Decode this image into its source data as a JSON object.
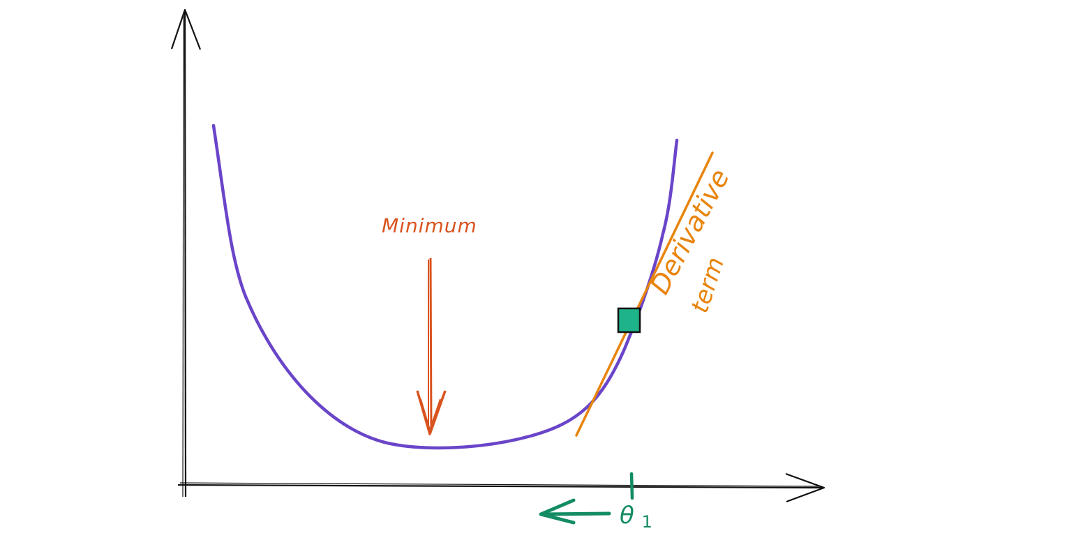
{
  "labels": {
    "minimum": "Minimum",
    "derivative_line1": "Derivative",
    "derivative_line2": "term",
    "theta_symbol": "θ",
    "theta_subscript": "1"
  },
  "colors": {
    "background": "#ffffff",
    "axes": "#111111",
    "curve": "#6a45c9",
    "minimum_label": "#d9531e",
    "minimum_arrow": "#d9531e",
    "tangent": "#e8840c",
    "derivative_label": "#e8840c",
    "point_fill": "#1fb38a",
    "point_stroke": "#111111",
    "theta": "#148c63",
    "step_arrow": "#148c63"
  },
  "icons": {
    "point": "square-marker",
    "minimum_arrow": "arrow-down-icon",
    "step_arrow": "arrow-left-icon"
  }
}
